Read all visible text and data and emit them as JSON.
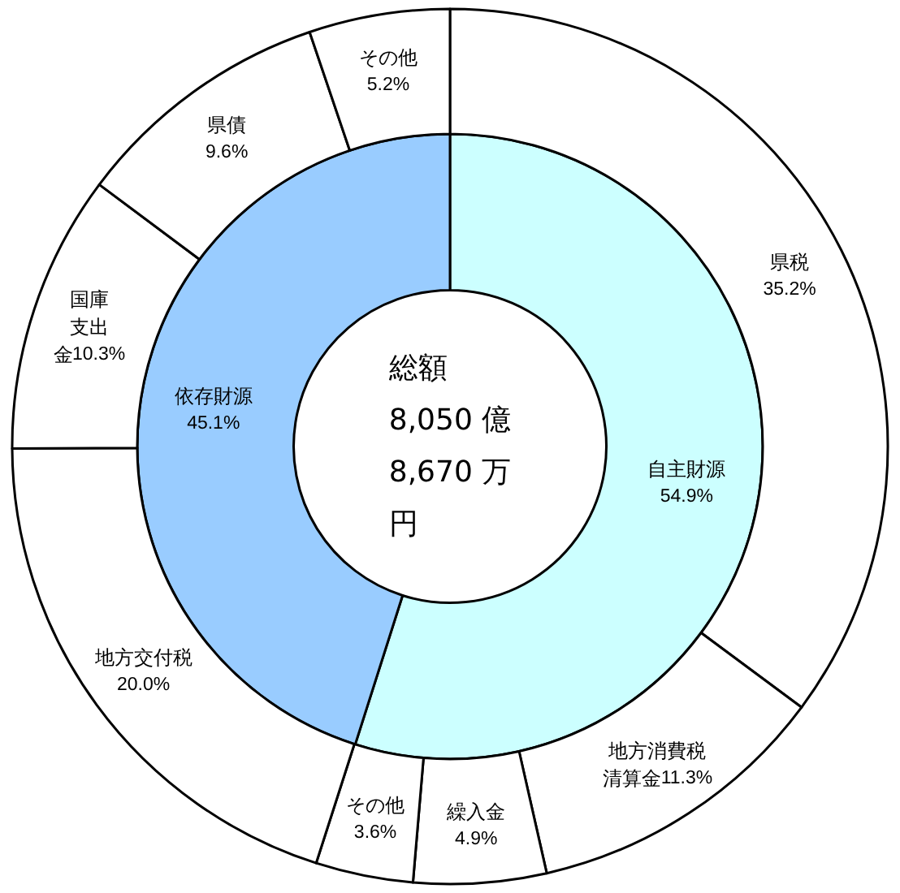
{
  "chart_data": [
    {
      "type": "donut",
      "annotations": [
        "総額",
        "8,050 億",
        "8,670 万",
        "円"
      ],
      "categories": [
        "自主財源",
        "依存財源"
      ],
      "values": [
        54.9,
        45.1
      ],
      "value_labels": [
        "54.9%",
        "45.1%"
      ],
      "colors": [
        "#ccffff",
        "#99ccff"
      ]
    },
    {
      "type": "donut",
      "categories": [
        "県税",
        "地方消費税清算金",
        "繰入金",
        "その他",
        "地方交付税",
        "国庫支出金",
        "県債",
        "その他"
      ],
      "values": [
        35.2,
        11.3,
        4.9,
        3.6,
        20.0,
        10.3,
        9.6,
        5.2
      ],
      "value_labels": [
        "35.2%",
        "11.3%",
        "4.9%",
        "3.6%",
        "20.0%",
        "10.3%",
        "9.6%",
        "5.2%"
      ],
      "colors": [
        "#ffffff",
        "#ffffff",
        "#ffffff",
        "#ffffff",
        "#ffffff",
        "#ffffff",
        "#ffffff",
        "#ffffff"
      ]
    }
  ]
}
